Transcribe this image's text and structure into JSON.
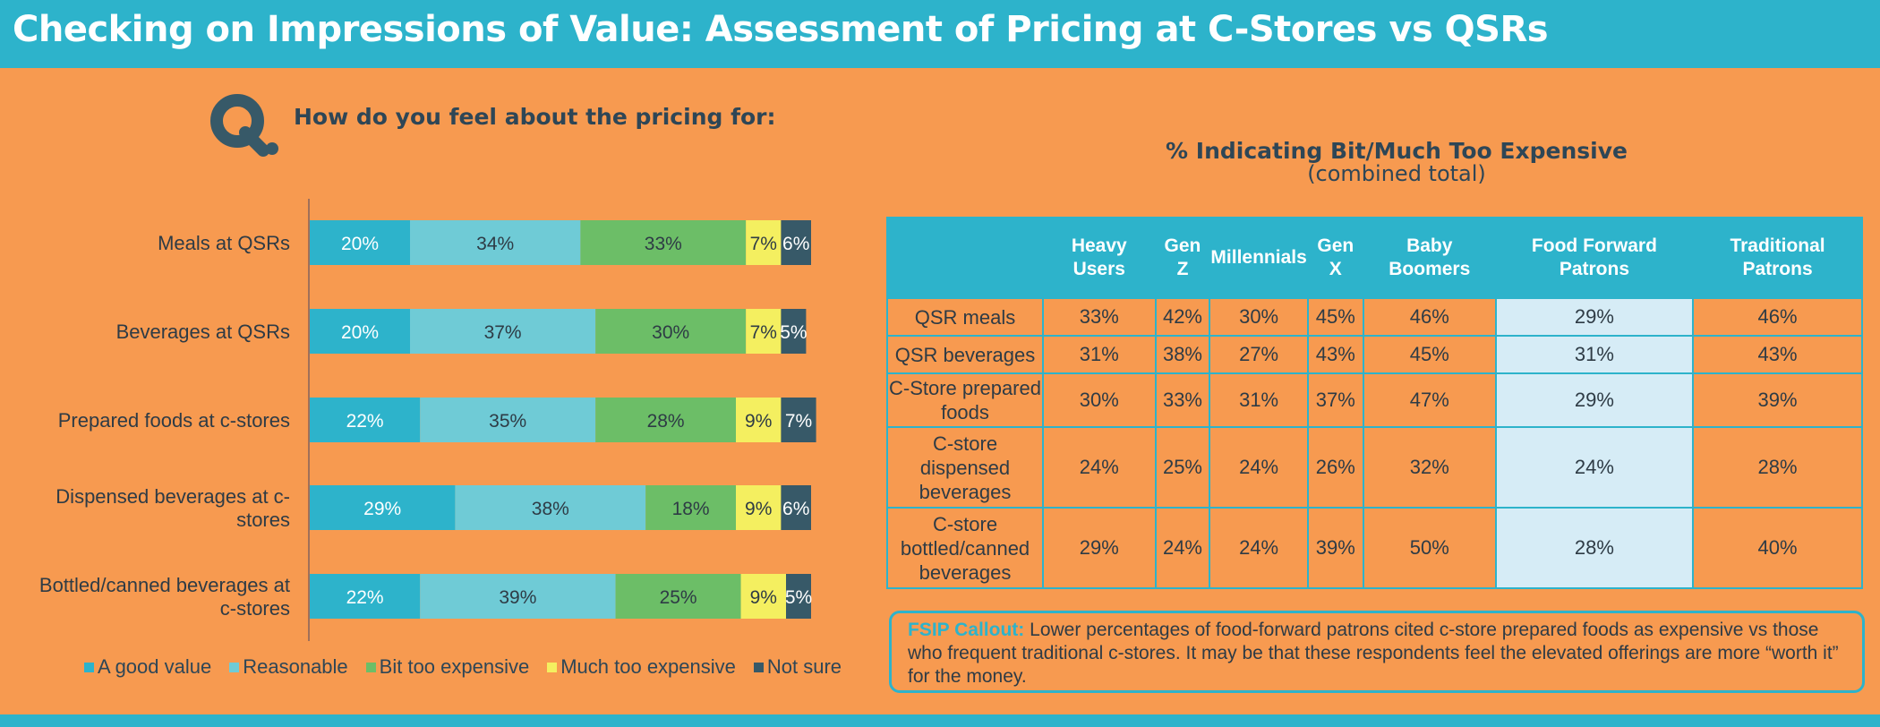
{
  "title": "Checking on Impressions of Value: Assessment of Pricing at C-Stores vs QSRs",
  "question": "How do you feel about the pricing for:",
  "colors": {
    "background": "#F79A50",
    "header": "#2DB3CB",
    "a_good_value": "#2DB3CB",
    "reasonable": "#6FCBD6",
    "bit_too_expensive": "#6CBE67",
    "much_too_expensive": "#F4EF60",
    "not_sure": "#375968",
    "highlight_column": "#D6ECF6"
  },
  "chart_data": {
    "type": "bar",
    "orientation": "horizontal",
    "stacked": true,
    "categories": [
      [
        "Meals at QSRs"
      ],
      [
        "Beverages at QSRs"
      ],
      [
        "Prepared foods at c-stores"
      ],
      [
        "Dispensed beverages at c-",
        "stores"
      ],
      [
        "Bottled/canned beverages at",
        "c-stores"
      ]
    ],
    "series": [
      {
        "name": "A good value",
        "values": [
          20,
          20,
          22,
          29,
          22
        ]
      },
      {
        "name": "Reasonable",
        "values": [
          34,
          37,
          35,
          38,
          39
        ]
      },
      {
        "name": "Bit too expensive",
        "values": [
          33,
          30,
          28,
          18,
          25
        ]
      },
      {
        "name": "Much too expensive",
        "values": [
          7,
          7,
          9,
          9,
          9
        ]
      },
      {
        "name": "Not sure",
        "values": [
          6,
          5,
          7,
          6,
          5
        ]
      }
    ],
    "label_suffix": "%",
    "xlim": [
      0,
      100
    ],
    "legend_position": "bottom"
  },
  "table": {
    "title": "% Indicating Bit/Much Too Expensive",
    "subtitle": "(combined total)",
    "columns": [
      "Heavy Users",
      "Gen Z",
      "Millennials",
      "Gen X",
      "Baby Boomers",
      "Food Forward Patrons",
      "Traditional Patrons"
    ],
    "highlight_column": 5,
    "rows": [
      {
        "label": "QSR meals",
        "values": [
          "33%",
          "42%",
          "30%",
          "45%",
          "46%",
          "29%",
          "46%"
        ]
      },
      {
        "label": "QSR beverages",
        "values": [
          "31%",
          "38%",
          "27%",
          "43%",
          "45%",
          "31%",
          "43%"
        ]
      },
      {
        "label": "C-Store prepared foods",
        "values": [
          "30%",
          "33%",
          "31%",
          "37%",
          "47%",
          "29%",
          "39%"
        ]
      },
      {
        "label": "C-store dispensed beverages",
        "values": [
          "24%",
          "25%",
          "24%",
          "26%",
          "32%",
          "24%",
          "28%"
        ]
      },
      {
        "label": "C-store bottled/canned beverages",
        "values": [
          "29%",
          "24%",
          "24%",
          "39%",
          "50%",
          "28%",
          "40%"
        ]
      }
    ]
  },
  "callout": {
    "label": "FSIP Callout:",
    "text": "Lower percentages of food-forward patrons cited c-store prepared foods as expensive vs those who frequent traditional c-stores. It may be that these respondents feel the elevated offerings are more “worth it” for the money."
  }
}
